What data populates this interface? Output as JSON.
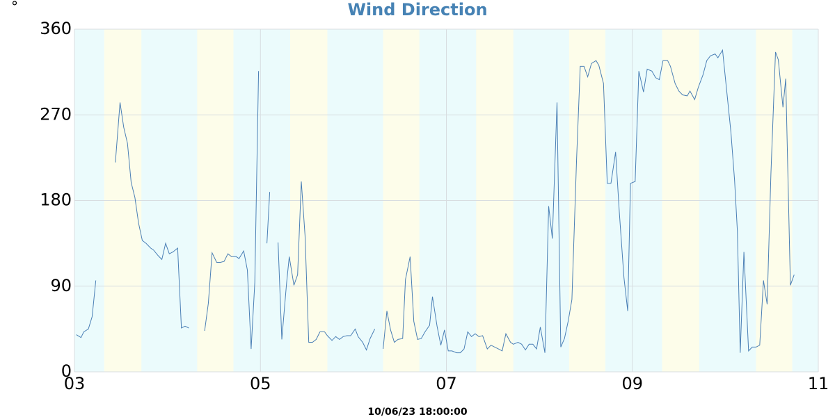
{
  "chart_data": {
    "type": "line",
    "title": "Wind Direction",
    "y_unit": "°",
    "footer": "10/06/23 18:00:00",
    "color": "#4a7fb5",
    "background_color": "#ebfbfc",
    "shade_color": "#fdfdea",
    "shaded_periods": [
      [
        3.32,
        3.72
      ],
      [
        4.32,
        4.71
      ],
      [
        5.32,
        5.72
      ],
      [
        6.32,
        6.71
      ],
      [
        7.32,
        7.72
      ],
      [
        8.32,
        8.71
      ],
      [
        9.32,
        9.72
      ],
      [
        10.33,
        10.72
      ]
    ],
    "grid": true,
    "xlim": [
      3,
      11
    ],
    "ylim": [
      0,
      360
    ],
    "xticks": [
      {
        "value": 3,
        "label": "03"
      },
      {
        "value": 5,
        "label": "05"
      },
      {
        "value": 7,
        "label": "07"
      },
      {
        "value": 9,
        "label": "09"
      },
      {
        "value": 11,
        "label": "11"
      }
    ],
    "yticks": [
      0,
      90,
      180,
      270,
      360
    ],
    "x": [
      3.02,
      3.07,
      3.1,
      3.15,
      3.19,
      3.23,
      3.3,
      3.44,
      3.49,
      3.53,
      3.57,
      3.61,
      3.65,
      3.69,
      3.73,
      3.77,
      3.82,
      3.85,
      3.9,
      3.94,
      3.98,
      4.02,
      4.06,
      4.11,
      4.15,
      4.19,
      4.23,
      4.3,
      4.4,
      4.44,
      4.48,
      4.53,
      4.57,
      4.61,
      4.65,
      4.69,
      4.74,
      4.77,
      4.82,
      4.86,
      4.9,
      4.94,
      4.98,
      5.03,
      5.07,
      5.1,
      5.15,
      5.19,
      5.23,
      5.28,
      5.31,
      5.36,
      5.4,
      5.44,
      5.48,
      5.52,
      5.56,
      5.6,
      5.64,
      5.69,
      5.72,
      5.77,
      5.81,
      5.85,
      5.89,
      5.93,
      5.97,
      6.02,
      6.05,
      6.1,
      6.14,
      6.18,
      6.23,
      6.28,
      6.32,
      6.36,
      6.4,
      6.44,
      6.48,
      6.53,
      6.56,
      6.61,
      6.65,
      6.69,
      6.73,
      6.77,
      6.82,
      6.85,
      6.9,
      6.94,
      6.98,
      7.02,
      7.06,
      7.11,
      7.15,
      7.19,
      7.23,
      7.27,
      7.31,
      7.35,
      7.39,
      7.44,
      7.48,
      7.52,
      7.56,
      7.6,
      7.64,
      7.69,
      7.72,
      7.77,
      7.81,
      7.85,
      7.89,
      7.93,
      7.97,
      8.01,
      8.06,
      8.1,
      8.14,
      8.19,
      8.23,
      8.27,
      8.31,
      8.35,
      8.4,
      8.44,
      8.48,
      8.52,
      8.56,
      8.61,
      8.64,
      8.69,
      8.73,
      8.77,
      8.82,
      8.86,
      8.91,
      8.95,
      8.98,
      9.03,
      9.07,
      9.12,
      9.16,
      9.21,
      9.25,
      9.29,
      9.33,
      9.38,
      9.41,
      9.46,
      9.5,
      9.54,
      9.59,
      9.62,
      9.67,
      9.71,
      9.76,
      9.8,
      9.84,
      9.89,
      9.92,
      9.97,
      10.01,
      10.06,
      10.1,
      10.13,
      10.16,
      10.2,
      10.25,
      10.29,
      10.33,
      10.37,
      10.41,
      10.45,
      10.49,
      10.54,
      10.57,
      10.62,
      10.65,
      10.7,
      10.74
    ],
    "values": [
      39,
      36,
      42,
      45,
      58,
      96,
      null,
      220,
      283,
      257,
      240,
      199,
      183,
      156,
      138,
      135,
      130,
      128,
      122,
      118,
      135,
      124,
      126,
      130,
      46,
      48,
      46,
      null,
      43,
      72,
      125,
      115,
      115,
      116,
      124,
      121,
      121,
      119,
      127,
      107,
      24,
      94,
      316,
      null,
      135,
      189,
      null,
      136,
      34,
      92,
      121,
      91,
      102,
      200,
      143,
      31,
      31,
      34,
      42,
      42,
      38,
      33,
      37,
      34,
      37,
      38,
      38,
      45,
      37,
      31,
      23,
      35,
      45,
      null,
      24,
      64,
      44,
      31,
      34,
      35,
      97,
      121,
      53,
      34,
      35,
      42,
      49,
      79,
      48,
      28,
      44,
      22,
      22,
      20,
      20,
      24,
      42,
      37,
      40,
      37,
      38,
      24,
      28,
      26,
      24,
      22,
      40,
      31,
      29,
      31,
      29,
      23,
      29,
      29,
      24,
      47,
      20,
      174,
      140,
      283,
      26,
      35,
      53,
      76,
      223,
      321,
      321,
      310,
      324,
      327,
      322,
      303,
      198,
      198,
      231,
      168,
      99,
      64,
      198,
      200,
      316,
      294,
      318,
      316,
      309,
      307,
      327,
      327,
      321,
      303,
      295,
      291,
      290,
      295,
      286,
      299,
      312,
      327,
      332,
      334,
      330,
      338,
      300,
      252,
      201,
      148,
      20,
      126,
      22,
      26,
      26,
      28,
      96,
      71,
      208,
      336,
      328,
      278,
      308,
      91,
      102
    ]
  }
}
